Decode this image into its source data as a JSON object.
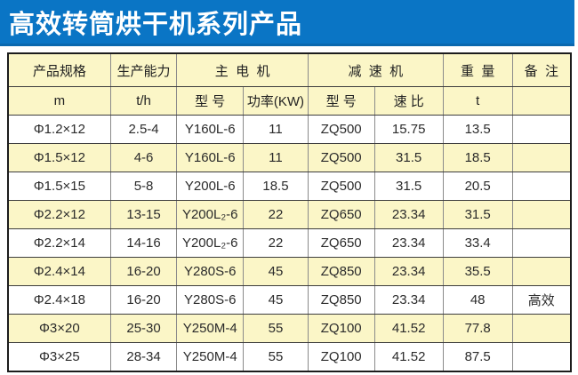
{
  "banner": {
    "title": "高效转筒烘干机系列产品",
    "background_color": "#0a75c5",
    "text_color": "#ffffff"
  },
  "table": {
    "row_highlight_color": "#fbf6c7",
    "header1": {
      "product_spec": "产品规格",
      "capacity": "生产能力",
      "main_motor": "主  电  机",
      "reducer": "减  速  机",
      "weight": "重  量",
      "remark": "备  注"
    },
    "header2": [
      "m",
      "t/h",
      "型 号",
      "功率(KW)",
      "型 号",
      "速 比",
      "t",
      ""
    ],
    "rows": [
      [
        "Φ1.2×12",
        "2.5-4",
        "Y160L-6",
        "11",
        "ZQ500",
        "15.75",
        "13.5",
        ""
      ],
      [
        "Φ1.5×12",
        "4-6",
        "Y160L-6",
        "11",
        "ZQ500",
        "31.5",
        "18.5",
        ""
      ],
      [
        "Φ1.5×15",
        "5-8",
        "Y200L-6",
        "18.5",
        "ZQ500",
        "31.5",
        "20.5",
        ""
      ],
      [
        "Φ2.2×12",
        "13-15",
        "Y200L₂-6",
        "22",
        "ZQ650",
        "23.34",
        "31.5",
        ""
      ],
      [
        "Φ2.2×14",
        "14-16",
        "Y200L₂-6",
        "22",
        "ZQ650",
        "23.34",
        "33.4",
        ""
      ],
      [
        "Φ2.4×14",
        "16-20",
        "Y280S-6",
        "45",
        "ZQ850",
        "23.34",
        "35.5",
        ""
      ],
      [
        "Φ2.4×18",
        "16-20",
        "Y280S-6",
        "45",
        "ZQ850",
        "23.34",
        "48",
        "高效"
      ],
      [
        "Φ3×20",
        "25-30",
        "Y250M-4",
        "55",
        "ZQ100",
        "41.52",
        "77.8",
        ""
      ],
      [
        "Φ3×25",
        "28-34",
        "Y250M-4",
        "55",
        "ZQ100",
        "41.52",
        "87.5",
        ""
      ]
    ]
  }
}
